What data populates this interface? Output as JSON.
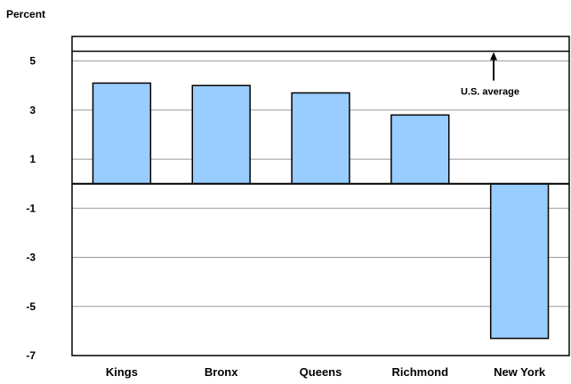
{
  "colors": {
    "bar_fill": "#99ccff",
    "bar_stroke": "#000000",
    "grid": "#999999",
    "frame": "#000000"
  },
  "chart_data": {
    "type": "bar",
    "title": "",
    "xlabel": "",
    "ylabel": "Percent",
    "categories": [
      "Kings",
      "Bronx",
      "Queens",
      "Richmond",
      "New York"
    ],
    "values": [
      4.1,
      4.0,
      3.7,
      2.8,
      -6.3
    ],
    "ylim": [
      -7,
      6
    ],
    "yticks": [
      5,
      3,
      1,
      -1,
      -3,
      -5,
      -7
    ],
    "ytick_labels": [
      "5",
      "3",
      "1",
      "-1",
      "-3",
      "-5",
      "-7"
    ],
    "grid": true,
    "reference_line": {
      "value": 5.4,
      "label": "U.S. average"
    }
  }
}
